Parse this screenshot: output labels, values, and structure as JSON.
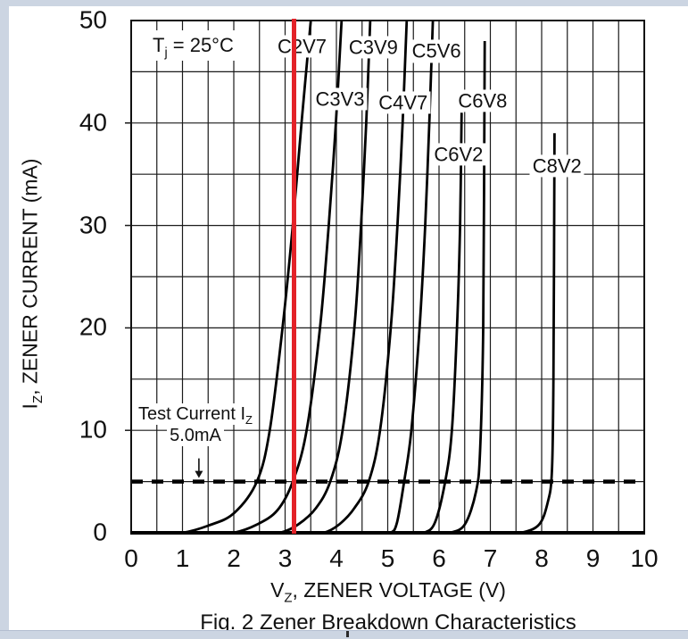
{
  "window": {
    "frame_color": "#ccd5e2",
    "page_bg": "#ffffff"
  },
  "figure": {
    "caption": "Fig. 2  Zener Breakdown Characteristics"
  },
  "chart_data": {
    "type": "line",
    "title": "",
    "condition": {
      "base": "T",
      "sub": "j",
      "rest": " = 25°C"
    },
    "xlabel": {
      "base": "V",
      "sub": "Z",
      "rest": ", ZENER VOLTAGE (V)"
    },
    "ylabel": {
      "base": "I",
      "sub": "Z",
      "rest": ", ZENER CURRENT (mA)"
    },
    "xlim": [
      0,
      10
    ],
    "ylim": [
      0,
      50
    ],
    "x_ticks": [
      "0",
      "1",
      "2",
      "3",
      "4",
      "5",
      "6",
      "7",
      "8",
      "9",
      "10"
    ],
    "y_ticks": [
      "0",
      "10",
      "20",
      "30",
      "40",
      "50"
    ],
    "x_grid_step_V": 0.5,
    "y_grid_step_mA": 5,
    "grid": true,
    "legend": "labels-on-plot",
    "test_current": {
      "label_base": "Test Current I",
      "label_sub": "Z",
      "value_label": "5.0mA",
      "level_mA": 5,
      "arrow_x_V": 1.32
    },
    "red_cursor_V": 3.18,
    "colors": {
      "curve": "#000000",
      "grid": "#1a1a1a",
      "red_cursor": "#e32228",
      "dashed_line": "#000000"
    },
    "series": [
      {
        "name": "C2V7",
        "points": [
          [
            1.0,
            0
          ],
          [
            1.5,
            0.7
          ],
          [
            2.0,
            1.9
          ],
          [
            2.45,
            5
          ],
          [
            2.7,
            10
          ],
          [
            2.95,
            20
          ],
          [
            3.15,
            30
          ],
          [
            3.32,
            40
          ],
          [
            3.5,
            50
          ]
        ],
        "label_pos": [
          3.33,
          47.5
        ]
      },
      {
        "name": "C3V3",
        "points": [
          [
            2.0,
            0
          ],
          [
            2.45,
            0.8
          ],
          [
            2.85,
            2.2
          ],
          [
            3.15,
            5
          ],
          [
            3.42,
            10
          ],
          [
            3.68,
            20
          ],
          [
            3.85,
            30
          ],
          [
            3.99,
            40
          ],
          [
            4.1,
            50
          ]
        ],
        "label_pos": [
          4.07,
          42.3
        ]
      },
      {
        "name": "C3V9",
        "points": [
          [
            2.9,
            0
          ],
          [
            3.25,
            0.8
          ],
          [
            3.6,
            2.4
          ],
          [
            3.88,
            5
          ],
          [
            4.12,
            10
          ],
          [
            4.35,
            20
          ],
          [
            4.48,
            30
          ],
          [
            4.58,
            40
          ],
          [
            4.66,
            50
          ]
        ],
        "label_pos": [
          4.72,
          47.4
        ]
      },
      {
        "name": "C4V7",
        "points": [
          [
            3.75,
            0
          ],
          [
            4.05,
            0.8
          ],
          [
            4.35,
            2.4
          ],
          [
            4.63,
            5
          ],
          [
            4.85,
            10
          ],
          [
            5.06,
            20
          ],
          [
            5.19,
            30
          ],
          [
            5.29,
            40
          ],
          [
            5.37,
            50
          ]
        ],
        "label_pos": [
          5.3,
          42.0
        ]
      },
      {
        "name": "C5V6",
        "points": [
          [
            5.05,
            0
          ],
          [
            5.18,
            1
          ],
          [
            5.32,
            5
          ],
          [
            5.46,
            10
          ],
          [
            5.62,
            20
          ],
          [
            5.73,
            30
          ],
          [
            5.81,
            40
          ],
          [
            5.88,
            50
          ]
        ],
        "label_pos": [
          5.95,
          47.0
        ]
      },
      {
        "name": "C6V2",
        "points": [
          [
            5.7,
            0
          ],
          [
            5.92,
            1
          ],
          [
            6.12,
            5
          ],
          [
            6.25,
            10
          ],
          [
            6.35,
            20
          ],
          [
            6.41,
            30
          ],
          [
            6.44,
            41
          ]
        ],
        "label_pos": [
          6.38,
          36.9
        ]
      },
      {
        "name": "C6V8",
        "points": [
          [
            6.2,
            0
          ],
          [
            6.5,
            0.8
          ],
          [
            6.72,
            4
          ],
          [
            6.8,
            8
          ],
          [
            6.86,
            20
          ],
          [
            6.89,
            48
          ]
        ],
        "label_pos": [
          6.85,
          42.2
        ]
      },
      {
        "name": "C8V2",
        "points": [
          [
            7.6,
            0
          ],
          [
            7.95,
            0.8
          ],
          [
            8.12,
            3
          ],
          [
            8.2,
            6
          ],
          [
            8.23,
            15
          ],
          [
            8.25,
            39
          ]
        ],
        "label_pos": [
          8.3,
          35.8
        ]
      }
    ]
  }
}
